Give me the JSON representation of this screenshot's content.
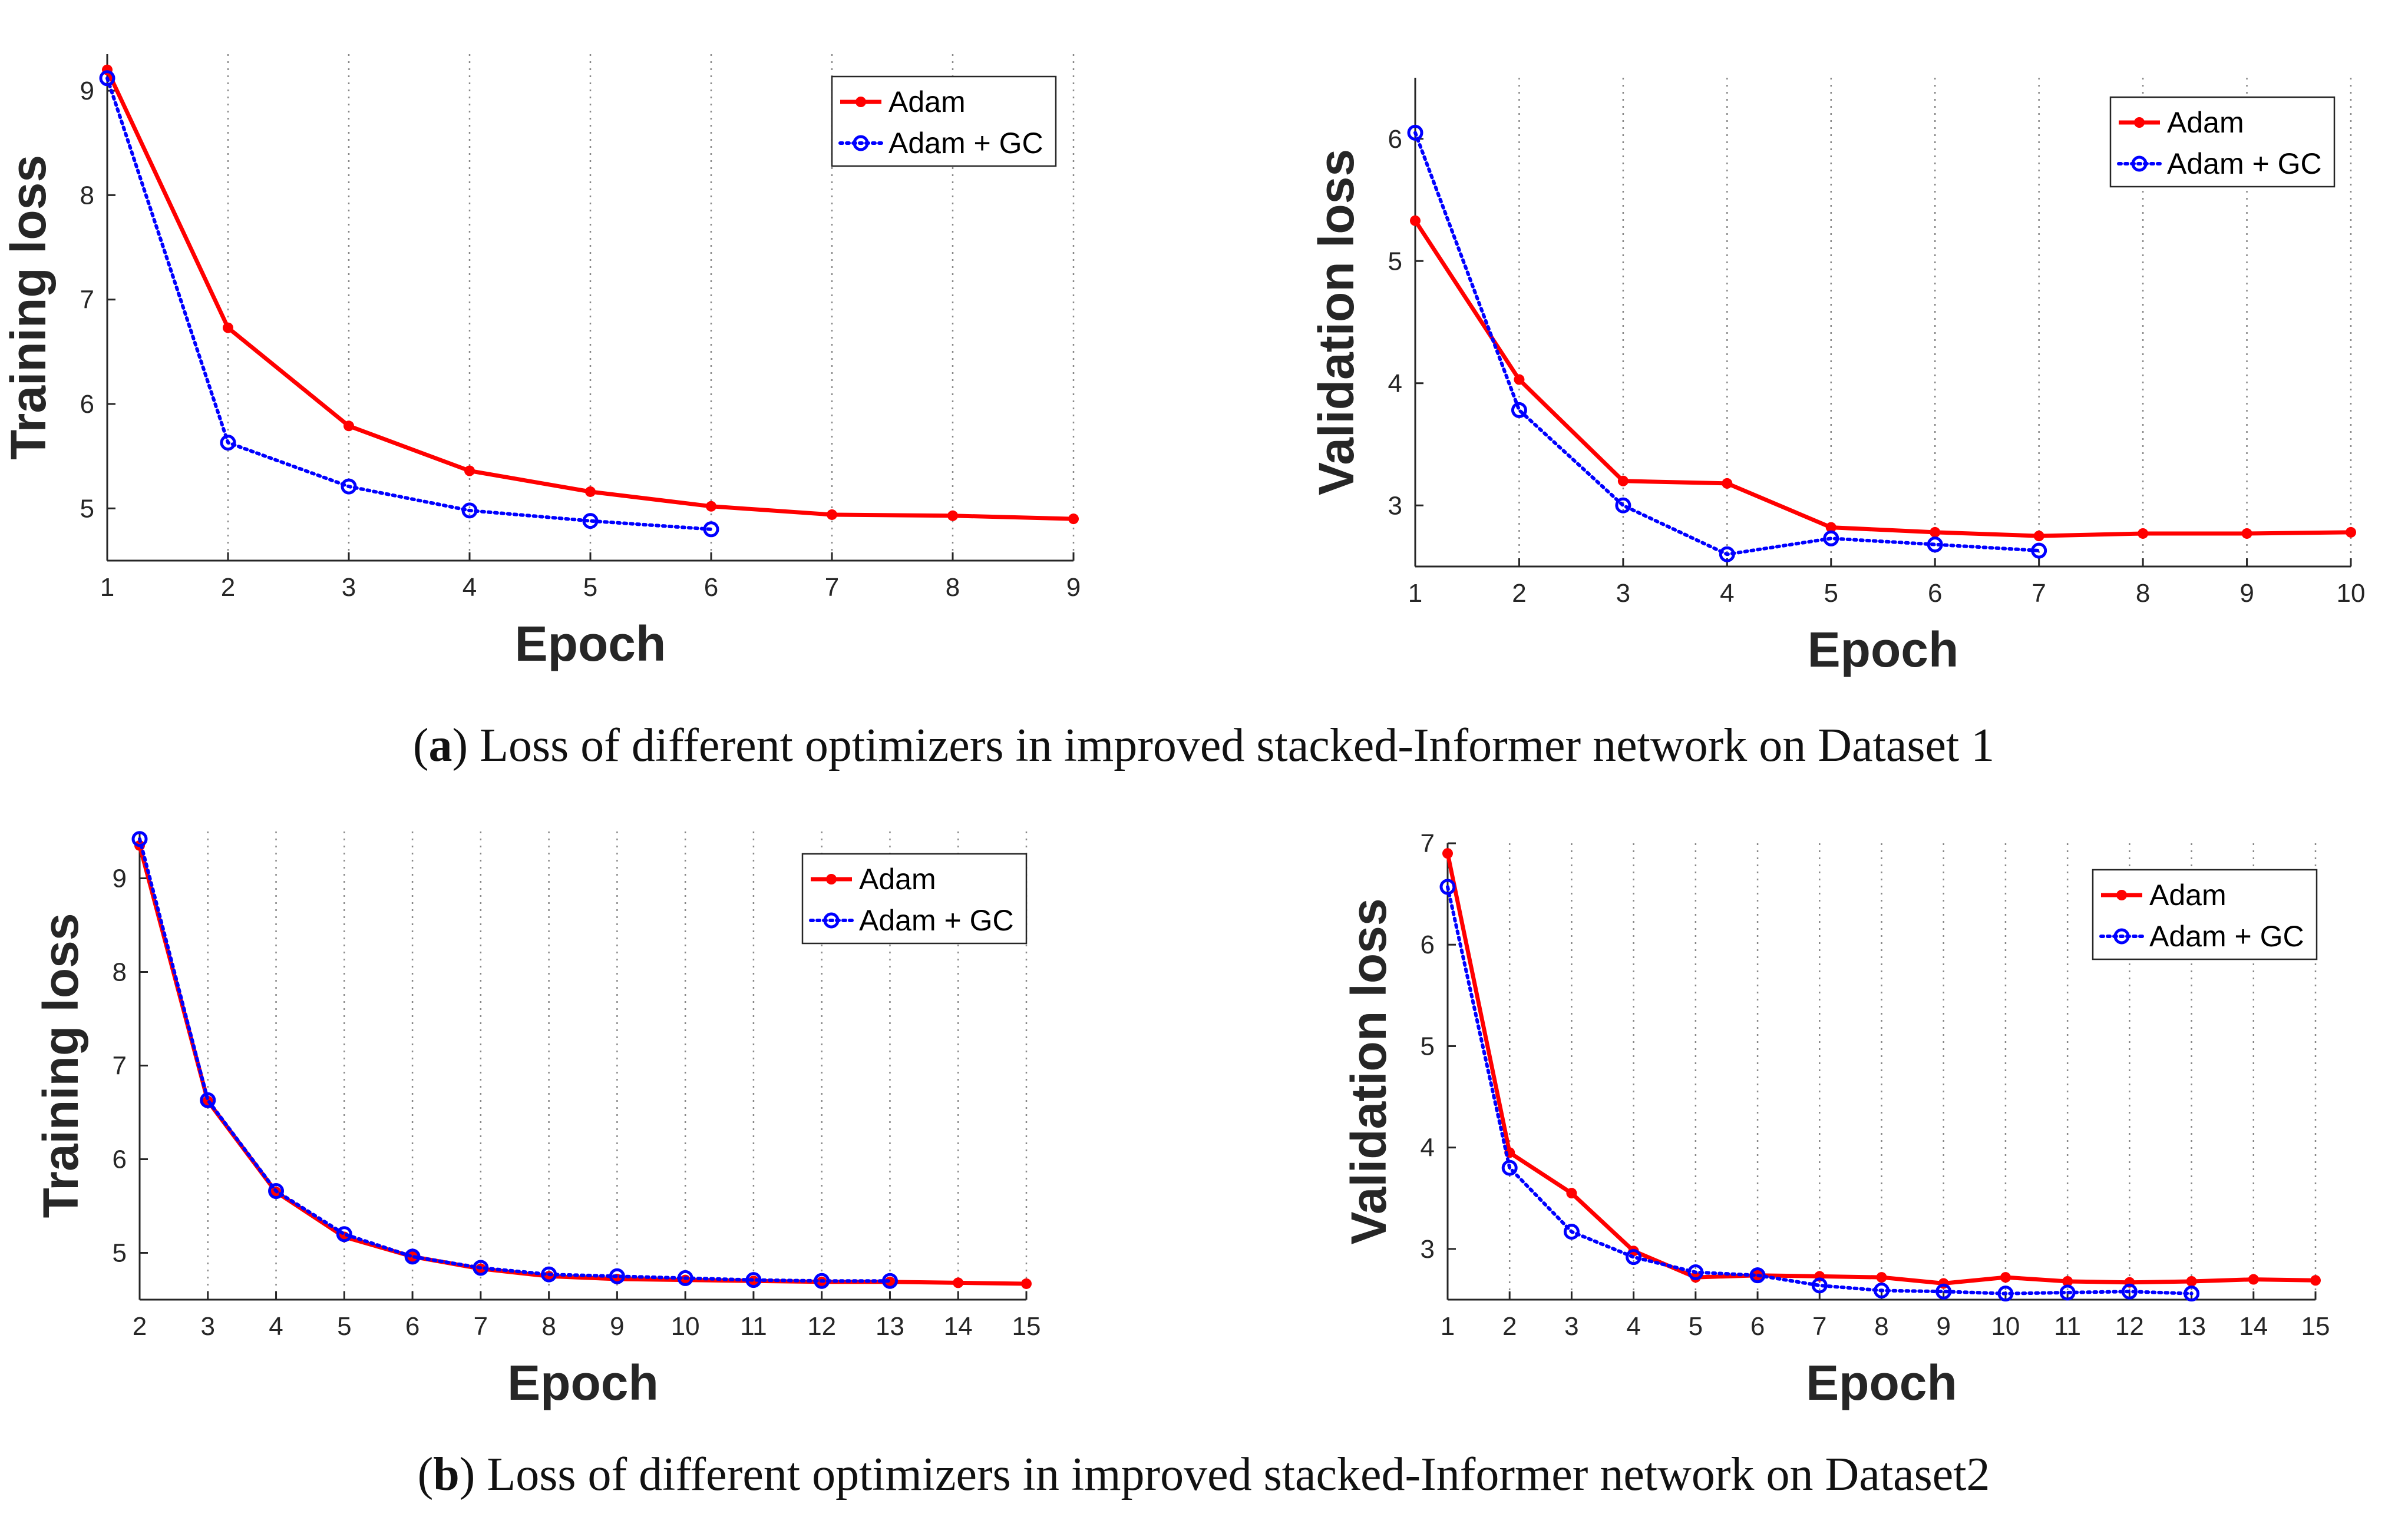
{
  "captions": {
    "a_letter": "a",
    "a_text": " Loss of different optimizers in improved stacked-Informer network on Dataset 1",
    "b_letter": "b",
    "b_text": " Loss of different optimizers in improved stacked-Informer network on Dataset2"
  },
  "colors": {
    "adam": "#ff0000",
    "adam_gc": "#0000ff",
    "axis": "#262626",
    "grid": "#262626"
  },
  "chart_data": [
    {
      "id": "a-left",
      "type": "line",
      "title": "",
      "xlabel": "Epoch",
      "ylabel": "Training loss",
      "xlim": [
        1,
        9
      ],
      "ylim": [
        4.5,
        9.35
      ],
      "xticks": [
        1,
        2,
        3,
        4,
        5,
        6,
        7,
        8,
        9
      ],
      "yticks": [
        5,
        6,
        7,
        8,
        9
      ],
      "grid": "vertical-dotted",
      "legend_position": "top-right",
      "series": [
        {
          "name": "Adam",
          "style": "solid-dot",
          "x": [
            1,
            2,
            3,
            4,
            5,
            6,
            7,
            8,
            9
          ],
          "y": [
            9.2,
            6.73,
            5.79,
            5.36,
            5.16,
            5.02,
            4.94,
            4.93,
            4.9
          ]
        },
        {
          "name": "Adam + GC",
          "style": "dotted-circle",
          "x": [
            1,
            2,
            3,
            4,
            5,
            6
          ],
          "y": [
            9.12,
            5.63,
            5.21,
            4.98,
            4.88,
            4.8
          ]
        }
      ]
    },
    {
      "id": "a-right",
      "type": "line",
      "title": "",
      "xlabel": "Epoch",
      "ylabel": "Validation loss",
      "xlim": [
        1,
        10
      ],
      "ylim": [
        2.5,
        6.5
      ],
      "xticks": [
        1,
        2,
        3,
        4,
        5,
        6,
        7,
        8,
        9,
        10
      ],
      "yticks": [
        3,
        4,
        5,
        6
      ],
      "grid": "vertical-dotted",
      "legend_position": "top-right",
      "series": [
        {
          "name": "Adam",
          "style": "solid-dot",
          "x": [
            1,
            2,
            3,
            4,
            5,
            6,
            7,
            8,
            9,
            10
          ],
          "y": [
            5.33,
            4.03,
            3.2,
            3.18,
            2.82,
            2.78,
            2.75,
            2.77,
            2.77,
            2.78
          ]
        },
        {
          "name": "Adam + GC",
          "style": "dotted-circle",
          "x": [
            1,
            2,
            3,
            4,
            5,
            6,
            7
          ],
          "y": [
            6.05,
            3.78,
            3.0,
            2.6,
            2.73,
            2.68,
            2.63
          ]
        }
      ]
    },
    {
      "id": "b-left",
      "type": "line",
      "title": "",
      "xlabel": "Epoch",
      "ylabel": "Training loss",
      "xlim": [
        2,
        15
      ],
      "ylim": [
        4.5,
        9.5
      ],
      "xticks": [
        2,
        3,
        4,
        5,
        6,
        7,
        8,
        9,
        10,
        11,
        12,
        13,
        14,
        15
      ],
      "yticks": [
        5,
        6,
        7,
        8,
        9
      ],
      "grid": "vertical-dotted",
      "legend_position": "top-right",
      "series": [
        {
          "name": "Adam",
          "style": "solid-dot",
          "x": [
            2,
            3,
            4,
            5,
            6,
            7,
            8,
            9,
            10,
            11,
            12,
            13,
            14,
            15
          ],
          "y": [
            9.35,
            6.62,
            5.65,
            5.17,
            4.96,
            4.83,
            4.75,
            4.72,
            4.71,
            4.7,
            4.69,
            4.69,
            4.68,
            4.67
          ]
        },
        {
          "name": "Adam + GC",
          "style": "dotted-circle",
          "x": [
            2,
            3,
            4,
            5,
            6,
            7,
            8,
            9,
            10,
            11,
            12,
            13
          ],
          "y": [
            9.42,
            6.63,
            5.66,
            5.2,
            4.96,
            4.84,
            4.77,
            4.75,
            4.73,
            4.71,
            4.7,
            4.7
          ]
        }
      ]
    },
    {
      "id": "b-right",
      "type": "line",
      "title": "",
      "xlabel": "Epoch",
      "ylabel": "Validation loss",
      "xlim": [
        1,
        15
      ],
      "ylim": [
        2.5,
        7.0
      ],
      "xticks": [
        1,
        2,
        3,
        4,
        5,
        6,
        7,
        8,
        9,
        10,
        11,
        12,
        13,
        14,
        15
      ],
      "yticks": [
        3,
        4,
        5,
        6,
        7
      ],
      "grid": "vertical-dotted",
      "legend_position": "top-right",
      "series": [
        {
          "name": "Adam",
          "style": "solid-dot",
          "x": [
            1,
            2,
            3,
            4,
            5,
            6,
            7,
            8,
            9,
            10,
            11,
            12,
            13,
            14,
            15
          ],
          "y": [
            6.9,
            3.95,
            3.55,
            2.98,
            2.72,
            2.74,
            2.73,
            2.72,
            2.66,
            2.72,
            2.68,
            2.67,
            2.68,
            2.7,
            2.69
          ]
        },
        {
          "name": "Adam + GC",
          "style": "dotted-circle",
          "x": [
            1,
            2,
            3,
            4,
            5,
            6,
            7,
            8,
            9,
            10,
            11,
            12,
            13
          ],
          "y": [
            6.57,
            3.8,
            3.17,
            2.92,
            2.77,
            2.74,
            2.64,
            2.59,
            2.58,
            2.56,
            2.57,
            2.58,
            2.56
          ]
        }
      ]
    }
  ]
}
